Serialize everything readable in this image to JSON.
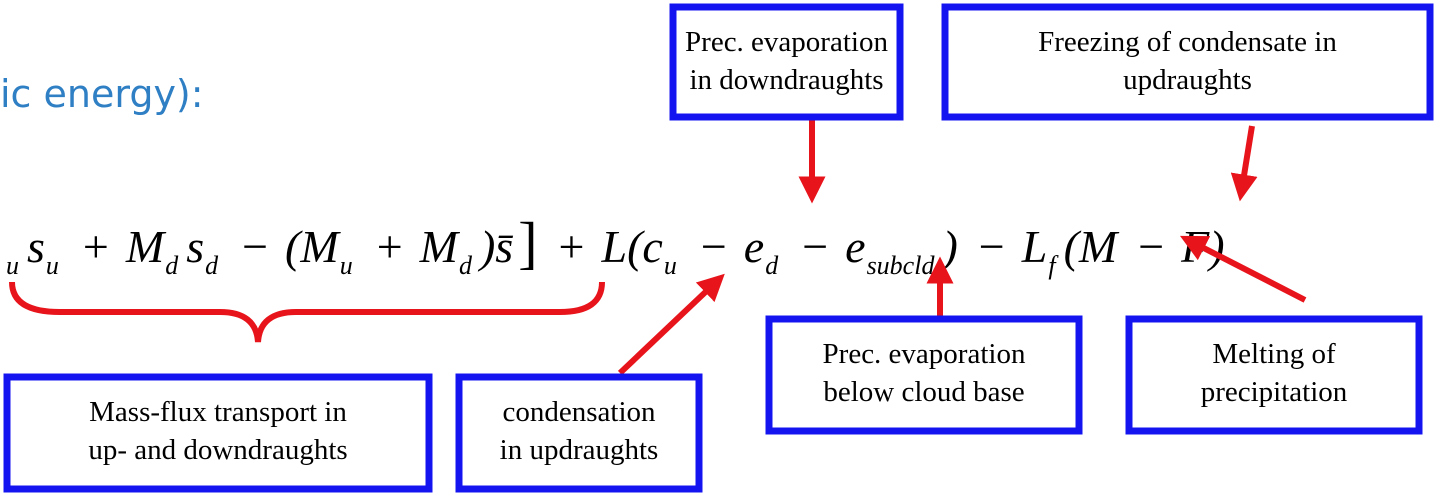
{
  "heading": "ic energy):",
  "equation": [
    {
      "sub": "u"
    },
    {
      "text": "s",
      "sub": "u"
    },
    {
      "text": "+"
    },
    {
      "text": "M",
      "sub": "d"
    },
    {
      "text": "s",
      "sub": "d"
    },
    {
      "text": "−"
    },
    {
      "text": "(M",
      "sub": "u"
    },
    {
      "text": "+"
    },
    {
      "text": "M",
      "sub": "d"
    },
    {
      "text": ")s̄"
    },
    {
      "text": "]"
    },
    {
      "text": "+"
    },
    {
      "text": "L(c",
      "sub": "u"
    },
    {
      "text": "−"
    },
    {
      "text": "e",
      "sub": "d"
    },
    {
      "text": "−"
    },
    {
      "text": "e",
      "sub": "subcld"
    },
    {
      "text": ")"
    },
    {
      "text": "−"
    },
    {
      "text": "L",
      "sub": "f"
    },
    {
      "text": "(M"
    },
    {
      "text": "−"
    },
    {
      "text": "F)"
    }
  ],
  "boxes": [
    {
      "lines": [
        "Prec. evaporation",
        "in downdraughts"
      ]
    },
    {
      "lines": [
        "Freezing of condensate in",
        "updraughts"
      ]
    },
    {
      "lines": [
        "Mass-flux transport in",
        "up- and downdraughts"
      ]
    },
    {
      "lines": [
        "condensation",
        "in updraughts"
      ]
    },
    {
      "lines": [
        "Prec. evaporation",
        "below cloud base"
      ]
    },
    {
      "lines": [
        "Melting of",
        "precipitation"
      ]
    }
  ]
}
